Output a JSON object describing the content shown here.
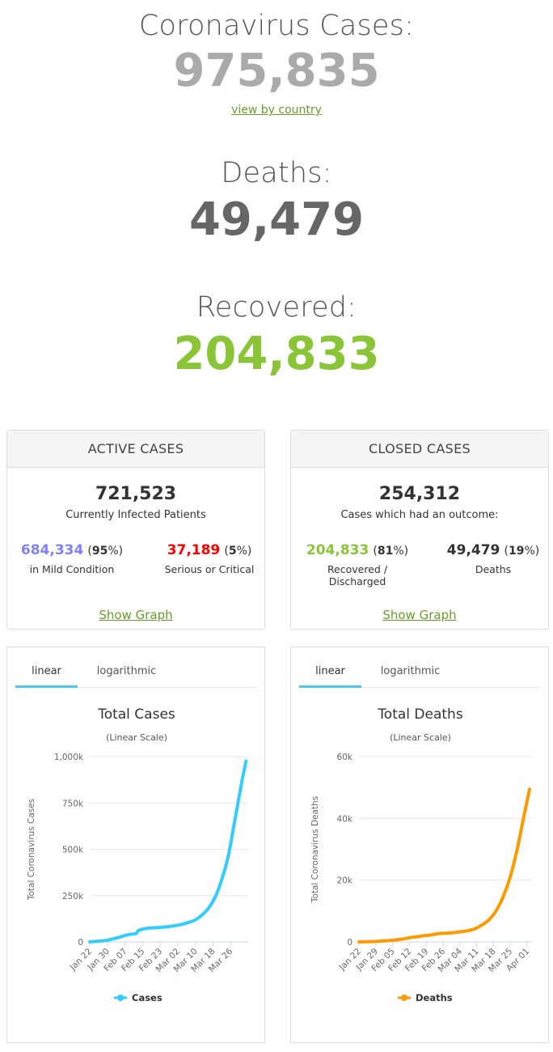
{
  "cases": {
    "label": "Coronavirus Cases:",
    "value": "975,835",
    "link": "view by country"
  },
  "deaths": {
    "label": "Deaths:",
    "value": "49,479"
  },
  "recovered": {
    "label": "Recovered:",
    "value": "204,833"
  },
  "active": {
    "title": "ACTIVE CASES",
    "total": "721,523",
    "subtitle": "Currently Infected Patients",
    "mild": {
      "value": "684,334",
      "pct": "95",
      "label": "in Mild Condition"
    },
    "serious": {
      "value": "37,189",
      "pct": "5",
      "label": "Serious or Critical"
    },
    "show_graph": "Show Graph"
  },
  "closed": {
    "title": "CLOSED CASES",
    "total": "254,312",
    "subtitle": "Cases which had an outcome:",
    "recovered": {
      "value": "204,833",
      "pct": "81",
      "label": "Recovered / Discharged"
    },
    "deaths": {
      "value": "49,479",
      "pct": "19",
      "label": "Deaths"
    },
    "show_graph": "Show Graph"
  },
  "tabs": {
    "linear": "linear",
    "log": "logarithmic"
  },
  "colors": {
    "cases": "#33ccff",
    "deaths": "#ff9900",
    "mild": "#8080ff",
    "serious": "#ff0000",
    "recovered": "#8ac537"
  },
  "chart_data": [
    {
      "type": "line",
      "title": "Total Cases",
      "subtitle": "(Linear Scale)",
      "ylabel": "Total Coronavirus Cases",
      "ylim": [
        0,
        1000000
      ],
      "yticks": [
        "0",
        "250k",
        "500k",
        "750k",
        "1,000k"
      ],
      "xticks": [
        "Jan 22",
        "Jan 30",
        "Feb 07",
        "Feb 15",
        "Feb 23",
        "Mar 02",
        "Mar 10",
        "Mar 18",
        "Mar 26"
      ],
      "legend": "bottom",
      "series": [
        {
          "name": "Cases",
          "color": "#33ccff",
          "x": [
            "Jan 22",
            "Jan 25",
            "Jan 28",
            "Jan 31",
            "Feb 03",
            "Feb 06",
            "Feb 09",
            "Feb 12",
            "Feb 13",
            "Feb 15",
            "Feb 18",
            "Feb 21",
            "Feb 24",
            "Feb 27",
            "Mar 01",
            "Mar 04",
            "Mar 07",
            "Mar 10",
            "Mar 13",
            "Mar 16",
            "Mar 19",
            "Mar 22",
            "Mar 25",
            "Mar 28",
            "Mar 31",
            "Apr 02"
          ],
          "values": [
            580,
            2900,
            6000,
            11900,
            20600,
            31200,
            40500,
            45200,
            60300,
            69000,
            75200,
            76800,
            79400,
            83000,
            88400,
            95300,
            105800,
            119000,
            145300,
            182400,
            243000,
            337000,
            467000,
            662000,
            857000,
            975835
          ]
        }
      ]
    },
    {
      "type": "line",
      "title": "Total Deaths",
      "subtitle": "(Linear Scale)",
      "ylabel": "Total Coronavirus Deaths",
      "ylim": [
        0,
        60000
      ],
      "yticks": [
        "0",
        "20k",
        "40k",
        "60k"
      ],
      "xticks": [
        "Jan 22",
        "Jan 29",
        "Feb 05",
        "Feb 12",
        "Feb 19",
        "Feb 26",
        "Mar 04",
        "Mar 11",
        "Mar 18",
        "Mar 25",
        "Apr 01"
      ],
      "legend": "bottom",
      "series": [
        {
          "name": "Deaths",
          "color": "#ff9900",
          "x": [
            "Jan 22",
            "Jan 25",
            "Jan 28",
            "Jan 31",
            "Feb 03",
            "Feb 06",
            "Feb 09",
            "Feb 12",
            "Feb 15",
            "Feb 18",
            "Feb 21",
            "Feb 24",
            "Feb 27",
            "Mar 01",
            "Mar 04",
            "Mar 07",
            "Mar 10",
            "Mar 13",
            "Mar 16",
            "Mar 19",
            "Mar 22",
            "Mar 25",
            "Mar 28",
            "Mar 31",
            "Apr 02"
          ],
          "values": [
            17,
            56,
            132,
            259,
            427,
            638,
            910,
            1370,
            1670,
            2010,
            2250,
            2700,
            2800,
            3000,
            3280,
            3600,
            4200,
            5400,
            7100,
            10000,
            14600,
            21200,
            30600,
            42100,
            49479
          ]
        }
      ]
    }
  ]
}
